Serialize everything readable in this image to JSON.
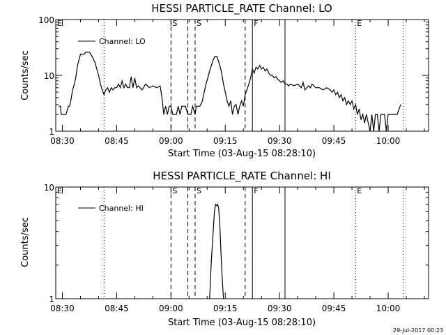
{
  "chart_data": [
    {
      "type": "line",
      "title": "HESSI PARTICLE_RATE Channel: LO",
      "xlabel": "Start Time (03-Aug-15 08:28:10)",
      "ylabel": "Counts/sec",
      "yscale": "log",
      "ylim": [
        1,
        100
      ],
      "y_ticks": [
        "1",
        "10",
        "100"
      ],
      "x_ticks": [
        "08:30",
        "08:45",
        "09:00",
        "09:15",
        "09:30",
        "09:45",
        "10:00"
      ],
      "xlim": [
        "08:28:10",
        "10:11:10"
      ],
      "legend": {
        "position": "top-left",
        "entries": [
          "Channel: LO"
        ]
      },
      "markers": [
        {
          "label": "E",
          "time": "08:28:10",
          "style": "none"
        },
        {
          "label": "",
          "time": "08:41:30",
          "style": "dotted"
        },
        {
          "label": "S",
          "time": "09:00:00",
          "style": "dashed"
        },
        {
          "label": "",
          "time": "09:04:40",
          "style": "dashed"
        },
        {
          "label": "S",
          "time": "09:06:40",
          "style": "dashed"
        },
        {
          "label": "",
          "time": "09:20:30",
          "style": "dashed"
        },
        {
          "label": "F",
          "time": "09:22:30",
          "style": "solid"
        },
        {
          "label": "",
          "time": "09:31:30",
          "style": "solid"
        },
        {
          "label": "E",
          "time": "09:51:00",
          "style": "dotted"
        },
        {
          "label": "",
          "time": "10:04:10",
          "style": "dotted"
        }
      ],
      "series": [
        {
          "values": [
            [
              "08:29:00",
              2.8
            ],
            [
              "08:29:30",
              2.8
            ],
            [
              "08:29:40",
              2.0
            ],
            [
              "08:30:30",
              2.0
            ],
            [
              "08:31:00",
              2.0
            ],
            [
              "08:31:40",
              2.8
            ],
            [
              "08:32:00",
              2.8
            ],
            [
              "08:32:20",
              3.5
            ],
            [
              "08:32:50",
              5.5
            ],
            [
              "08:33:20",
              7.0
            ],
            [
              "08:33:40",
              9.0
            ],
            [
              "08:34:10",
              15
            ],
            [
              "08:34:40",
              20
            ],
            [
              "08:35:00",
              24
            ],
            [
              "08:36:00",
              24
            ],
            [
              "08:36:30",
              26
            ],
            [
              "08:37:30",
              26
            ],
            [
              "08:38:00",
              23
            ],
            [
              "08:38:30",
              20
            ],
            [
              "08:39:00",
              17
            ],
            [
              "08:39:30",
              13
            ],
            [
              "08:40:00",
              10
            ],
            [
              "08:40:30",
              7.0
            ],
            [
              "08:41:00",
              5.5
            ],
            [
              "08:41:30",
              4.5
            ],
            [
              "08:42:00",
              5.5
            ],
            [
              "08:42:30",
              6.0
            ],
            [
              "08:43:00",
              5.0
            ],
            [
              "08:43:30",
              6.0
            ],
            [
              "08:44:00",
              5.5
            ],
            [
              "08:44:30",
              6.0
            ],
            [
              "08:45:00",
              6.0
            ],
            [
              "08:45:30",
              7.0
            ],
            [
              "08:46:00",
              6.0
            ],
            [
              "08:46:30",
              8.0
            ],
            [
              "08:47:00",
              6.0
            ],
            [
              "08:47:30",
              7.0
            ],
            [
              "08:48:00",
              6.0
            ],
            [
              "08:48:30",
              6.0
            ],
            [
              "08:49:00",
              9.5
            ],
            [
              "08:49:30",
              6.0
            ],
            [
              "08:50:00",
              9.0
            ],
            [
              "08:50:30",
              6.0
            ],
            [
              "08:51:00",
              6.5
            ],
            [
              "08:52:00",
              5.5
            ],
            [
              "08:53:00",
              7.0
            ],
            [
              "08:54:00",
              6.0
            ],
            [
              "08:55:00",
              6.5
            ],
            [
              "08:56:00",
              6.0
            ],
            [
              "08:57:00",
              6.5
            ],
            [
              "08:57:30",
              4.0
            ],
            [
              "08:58:00",
              2.0
            ],
            [
              "08:58:30",
              2.8
            ],
            [
              "08:59:00",
              2.0
            ],
            [
              "08:59:30",
              2.8
            ],
            [
              "09:00:00",
              2.8
            ],
            [
              "09:00:30",
              2.0
            ],
            [
              "09:01:30",
              2.0
            ],
            [
              "09:02:00",
              2.8
            ],
            [
              "09:02:30",
              2.0
            ],
            [
              "09:03:00",
              2.8
            ],
            [
              "09:04:00",
              2.8
            ],
            [
              "09:04:40",
              2.0
            ],
            [
              "09:05:30",
              2.0
            ],
            [
              "09:06:00",
              2.8
            ],
            [
              "09:06:40",
              2.0
            ],
            [
              "09:07:00",
              2.8
            ],
            [
              "09:08:00",
              2.8
            ],
            [
              "09:08:40",
              3.5
            ],
            [
              "09:09:10",
              5.0
            ],
            [
              "09:09:40",
              7.0
            ],
            [
              "09:10:10",
              9.0
            ],
            [
              "09:10:40",
              12
            ],
            [
              "09:11:10",
              15
            ],
            [
              "09:11:40",
              19
            ],
            [
              "09:12:10",
              22
            ],
            [
              "09:12:40",
              22
            ],
            [
              "09:13:00",
              19
            ],
            [
              "09:13:30",
              15
            ],
            [
              "09:14:00",
              11
            ],
            [
              "09:14:30",
              7.0
            ],
            [
              "09:15:00",
              5.0
            ],
            [
              "09:15:30",
              3.5
            ],
            [
              "09:16:00",
              2.8
            ],
            [
              "09:16:30",
              3.5
            ],
            [
              "09:17:00",
              2.0
            ],
            [
              "09:17:30",
              2.8
            ],
            [
              "09:18:00",
              3.0
            ],
            [
              "09:18:30",
              2.0
            ],
            [
              "09:19:00",
              2.8
            ],
            [
              "09:19:30",
              3.5
            ],
            [
              "09:20:00",
              2.8
            ],
            [
              "09:20:30",
              4.5
            ],
            [
              "09:21:00",
              5.5
            ],
            [
              "09:21:30",
              7.0
            ],
            [
              "09:22:00",
              9.0
            ],
            [
              "09:22:30",
              13
            ],
            [
              "09:23:00",
              11
            ],
            [
              "09:23:30",
              14
            ],
            [
              "09:24:00",
              13
            ],
            [
              "09:24:30",
              15
            ],
            [
              "09:25:00",
              13
            ],
            [
              "09:25:30",
              14
            ],
            [
              "09:26:00",
              12
            ],
            [
              "09:26:30",
              13
            ],
            [
              "09:27:00",
              11
            ],
            [
              "09:27:30",
              10
            ],
            [
              "09:28:00",
              10
            ],
            [
              "09:28:30",
              9.0
            ],
            [
              "09:29:00",
              9.5
            ],
            [
              "09:29:30",
              8.5
            ],
            [
              "09:30:00",
              8.0
            ],
            [
              "09:30:30",
              7.5
            ],
            [
              "09:31:00",
              8.0
            ],
            [
              "09:31:30",
              7.0
            ],
            [
              "09:32:00",
              7.0
            ],
            [
              "09:32:30",
              6.5
            ],
            [
              "09:33:00",
              7.0
            ],
            [
              "09:34:00",
              6.5
            ],
            [
              "09:35:00",
              7.0
            ],
            [
              "09:36:00",
              6.0
            ],
            [
              "09:36:30",
              7.5
            ],
            [
              "09:37:00",
              5.5
            ],
            [
              "09:38:00",
              6.5
            ],
            [
              "09:38:30",
              6.0
            ],
            [
              "09:39:00",
              7.0
            ],
            [
              "09:40:00",
              6.0
            ],
            [
              "09:41:00",
              6.0
            ],
            [
              "09:42:00",
              5.5
            ],
            [
              "09:43:00",
              6.0
            ],
            [
              "09:44:00",
              5.5
            ],
            [
              "09:44:30",
              5.0
            ],
            [
              "09:45:00",
              5.5
            ],
            [
              "09:45:30",
              4.5
            ],
            [
              "09:46:00",
              5.0
            ],
            [
              "09:46:30",
              4.0
            ],
            [
              "09:47:00",
              4.5
            ],
            [
              "09:47:30",
              3.5
            ],
            [
              "09:48:00",
              4.0
            ],
            [
              "09:48:30",
              3.0
            ],
            [
              "09:49:00",
              3.5
            ],
            [
              "09:49:30",
              3.0
            ],
            [
              "09:50:00",
              3.5
            ],
            [
              "09:50:30",
              2.5
            ],
            [
              "09:51:00",
              3.0
            ],
            [
              "09:51:30",
              2.0
            ],
            [
              "09:52:00",
              2.5
            ],
            [
              "09:52:30",
              1.6
            ],
            [
              "09:53:00",
              2.0
            ],
            [
              "09:53:30",
              1.4
            ],
            [
              "09:54:00",
              2.0
            ],
            [
              "09:54:30",
              1.4
            ],
            [
              "09:55:00",
              1.0
            ],
            [
              "09:55:30",
              2.0
            ],
            [
              "09:56:00",
              1.0
            ],
            [
              "09:56:30",
              2.0
            ],
            [
              "09:57:00",
              2.0
            ],
            [
              "09:57:30",
              1.0
            ],
            [
              "09:58:00",
              2.0
            ],
            [
              "09:59:00",
              2.0
            ],
            [
              "09:59:30",
              1.0
            ],
            [
              "10:00:00",
              2.0
            ],
            [
              "10:01:00",
              2.0
            ],
            [
              "10:02:00",
              2.0
            ],
            [
              "10:02:30",
              2.0
            ],
            [
              "10:03:00",
              2.5
            ],
            [
              "10:03:30",
              3.0
            ]
          ]
        }
      ]
    },
    {
      "type": "line",
      "title": "HESSI PARTICLE_RATE Channel: HI",
      "xlabel": "Start Time (03-Aug-15 08:28:10)",
      "ylabel": "Counts/sec",
      "yscale": "log",
      "ylim": [
        1,
        10
      ],
      "y_ticks": [
        "1",
        "10"
      ],
      "x_ticks": [
        "08:30",
        "08:45",
        "09:00",
        "09:15",
        "09:30",
        "09:45",
        "10:00"
      ],
      "xlim": [
        "08:28:10",
        "10:11:10"
      ],
      "legend": {
        "position": "top-left",
        "entries": [
          "Channel: HI"
        ]
      },
      "markers": [
        {
          "label": "E",
          "time": "08:28:10",
          "style": "none"
        },
        {
          "label": "",
          "time": "08:41:30",
          "style": "dotted"
        },
        {
          "label": "S",
          "time": "09:00:00",
          "style": "dashed"
        },
        {
          "label": "",
          "time": "09:04:40",
          "style": "dashed"
        },
        {
          "label": "S",
          "time": "09:06:40",
          "style": "dashed"
        },
        {
          "label": "",
          "time": "09:20:30",
          "style": "dashed"
        },
        {
          "label": "F",
          "time": "09:22:30",
          "style": "solid"
        },
        {
          "label": "",
          "time": "09:31:30",
          "style": "solid"
        },
        {
          "label": "E",
          "time": "09:51:00",
          "style": "dotted"
        },
        {
          "label": "",
          "time": "10:04:10",
          "style": "dotted"
        }
      ],
      "series": [
        {
          "values": [
            [
              "09:10:40",
              1.0
            ],
            [
              "09:11:10",
              2.2
            ],
            [
              "09:11:40",
              4.0
            ],
            [
              "09:12:00",
              6.0
            ],
            [
              "09:12:20",
              7.0
            ],
            [
              "09:12:40",
              6.8
            ],
            [
              "09:12:55",
              7.0
            ],
            [
              "09:13:10",
              6.5
            ],
            [
              "09:13:30",
              4.5
            ],
            [
              "09:13:50",
              2.5
            ],
            [
              "09:14:10",
              1.5
            ],
            [
              "09:14:30",
              1.0
            ]
          ]
        }
      ]
    }
  ],
  "timestamp": "29-Jul-2017 00:23"
}
